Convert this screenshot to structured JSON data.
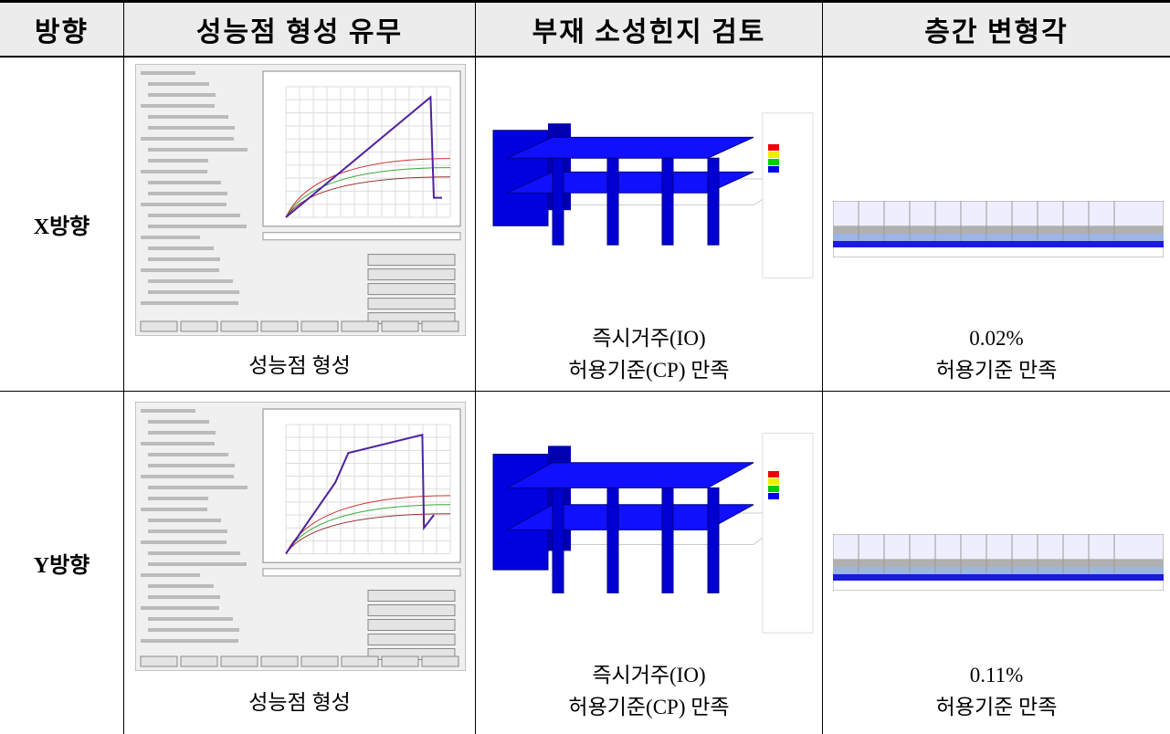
{
  "table": {
    "header": [
      "방향",
      "성능점 형성 유무",
      "부재 소성힌지 검토",
      "층간 변형각"
    ],
    "rows": [
      {
        "direction": "X방향",
        "performance_point": "성능점 형성",
        "hinge": [
          "즉시거주(IO)",
          "허용기준(CP) 만족"
        ],
        "drift": [
          "0.02%",
          "허용기준 만족"
        ]
      },
      {
        "direction": "Y방향",
        "performance_point": "성능점 형성",
        "hinge": [
          "즉시거주(IO)",
          "허용기준(CP) 만족"
        ],
        "drift": [
          "0.11%",
          "허용기준 만족"
        ]
      }
    ]
  }
}
